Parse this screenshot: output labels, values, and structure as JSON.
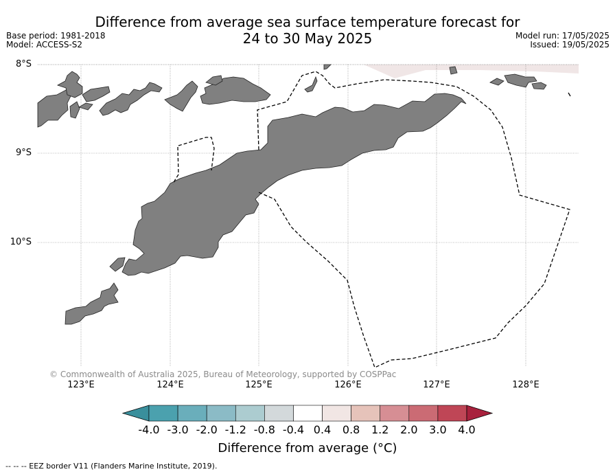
{
  "title": {
    "line1": "Difference from average sea surface temperature forecast for",
    "line2": "24 to 30 May 2025"
  },
  "meta": {
    "base_period": "Base period: 1981-2018",
    "model": "Model: ACCESS-S2",
    "model_run": "Model run: 17/05/2025",
    "issued": "Issued: 19/05/2025"
  },
  "axes": {
    "lat_labels": [
      "8°S",
      "9°S",
      "10°S"
    ],
    "lon_labels": [
      "123°E",
      "124°E",
      "125°E",
      "126°E",
      "127°E",
      "128°E"
    ]
  },
  "copyright": "© Commonwealth of Australia 2025, Bureau of Meteorology, supported by COSPPac",
  "colorbar": {
    "title": "Difference from average (°C)",
    "ticks": [
      "-4.0",
      "-3.0",
      "-2.0",
      "-1.2",
      "-0.8",
      "-0.4",
      "0.4",
      "0.8",
      "1.2",
      "2.0",
      "3.0",
      "4.0"
    ],
    "colors": [
      "#3a8f9c",
      "#4ba1ae",
      "#6aaebb",
      "#8bbbc6",
      "#acccd0",
      "#d3d9db",
      "#ffffff",
      "#f1e6e4",
      "#e6c3ba",
      "#d68e94",
      "#cb6b74",
      "#bf4656",
      "#a8213d"
    ]
  },
  "footer": "-- -- -- EEZ border V11 (Flanders Marine Institute, 2019).",
  "colors": {
    "land": "#808080",
    "anomaly_shade": "#f0e6e6"
  }
}
